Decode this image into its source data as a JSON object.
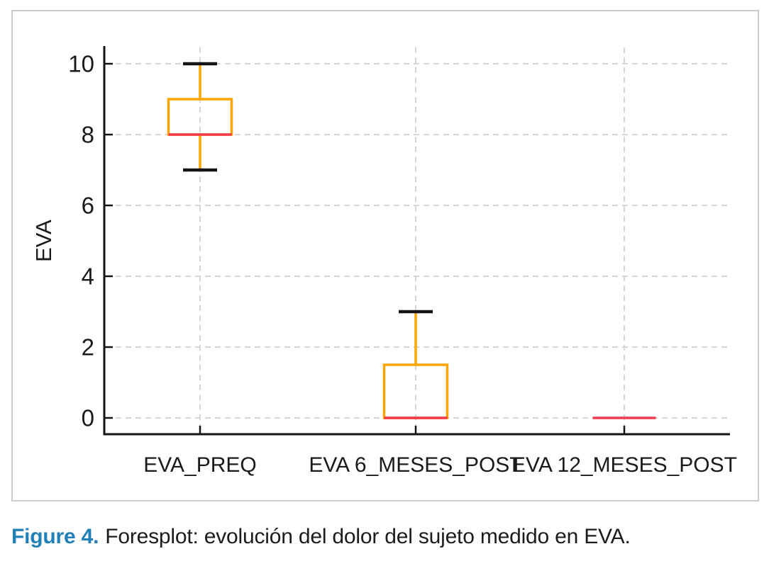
{
  "figure": {
    "caption": {
      "label": "Figure 4.",
      "text": "Foresplot: evolución del dolor del sujeto medido en EVA.",
      "label_color": "#2080B8"
    }
  },
  "chart_data": {
    "type": "boxplot",
    "title": "",
    "xlabel": "",
    "ylabel": "EVA",
    "ylim": [
      0,
      10.5
    ],
    "yticks": [
      0,
      2,
      4,
      6,
      8,
      10
    ],
    "grid": {
      "horizontal": true,
      "vertical": true,
      "style": "dashed"
    },
    "legend": "none",
    "categories": [
      "EVA_PREQ",
      "EVA 6_MESES_POST",
      "EVA 12_MESES_POST"
    ],
    "series": [
      {
        "name": "EVA_PREQ",
        "whisker_low": 7,
        "q1": 8,
        "median": 8,
        "q3": 9,
        "whisker_high": 10
      },
      {
        "name": "EVA 6_MESES_POST",
        "whisker_low": 0,
        "q1": 0,
        "median": 0,
        "q3": 1.5,
        "whisker_high": 3
      },
      {
        "name": "EVA 12_MESES_POST",
        "whisker_low": 0,
        "q1": 0,
        "median": 0,
        "q3": 0,
        "whisker_high": 0
      }
    ],
    "colors": {
      "box": "#FFA500",
      "whisker": "#FFA500",
      "median": "#F0394F",
      "cap": "#141414",
      "axis": "#141414",
      "grid": "#d5d5d5",
      "tick_label": "#1a1a1a"
    }
  }
}
